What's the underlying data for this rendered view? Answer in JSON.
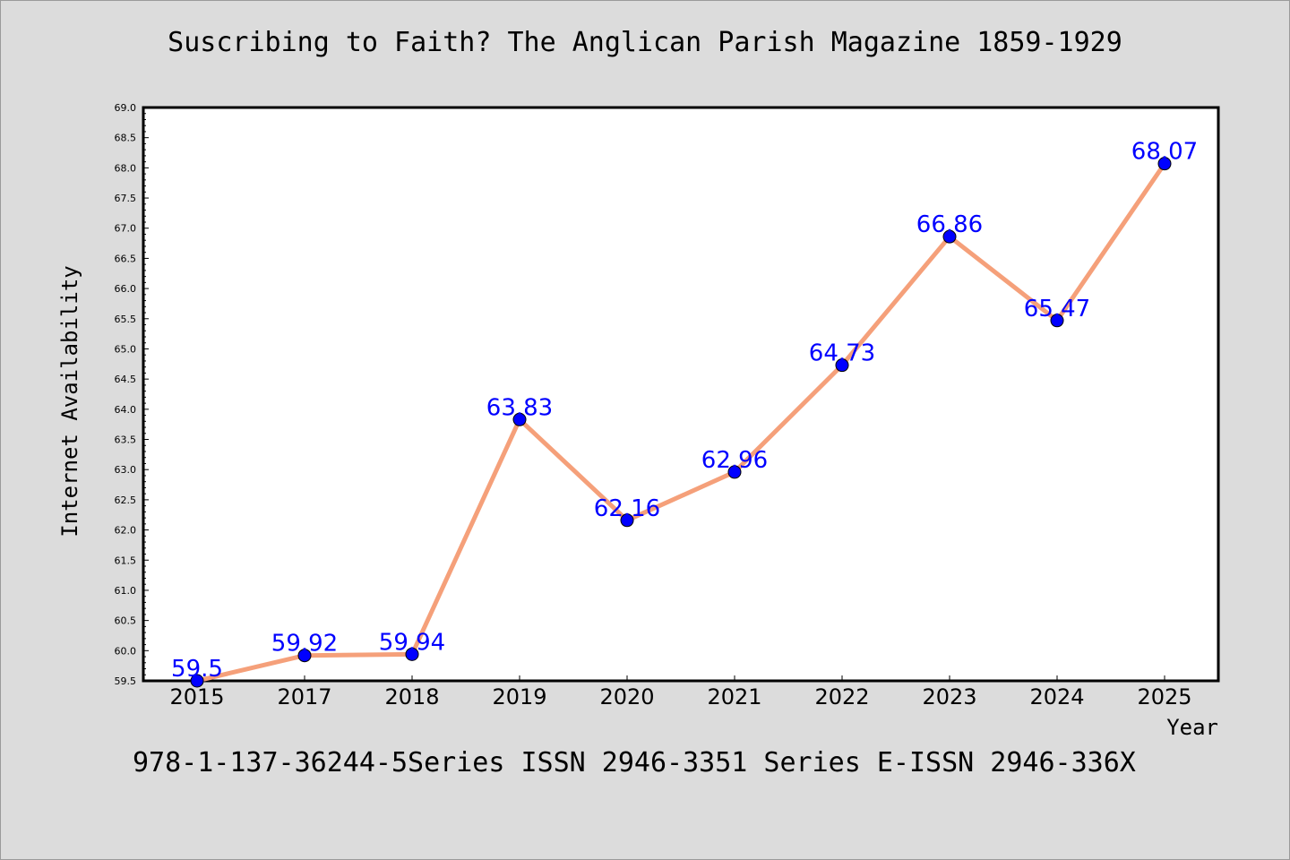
{
  "title": "Suscribing to Faith? The Anglican Parish Magazine 1859-1929",
  "footer": "978-1-137-36244-5Series ISSN 2946-3351 Series E-ISSN 2946-336X",
  "chart_data": {
    "type": "line",
    "title": "Suscribing to Faith? The Anglican Parish Magazine 1859-1929",
    "xlabel": "Year",
    "ylabel": "Internet Availability",
    "categories": [
      "2015",
      "2017",
      "2018",
      "2019",
      "2020",
      "2021",
      "2022",
      "2023",
      "2024",
      "2025"
    ],
    "series": [
      {
        "values": [
          59.5,
          59.92,
          59.94,
          63.83,
          62.16,
          62.96,
          64.73,
          66.86,
          65.47,
          68.07
        ],
        "line_color": "#f5a07a",
        "marker_color": "#0000ff"
      }
    ],
    "data_labels": [
      "59.5",
      "59.92",
      "59.94",
      "63.83",
      "62.16",
      "62.96",
      "64.73",
      "66.86",
      "65.47",
      "68.07"
    ],
    "yticks": [
      "59.5",
      "60.0",
      "60.5",
      "61.0",
      "61.5",
      "62.0",
      "62.5",
      "63.0",
      "63.5",
      "64.0",
      "64.5",
      "65.0",
      "65.5",
      "66.0",
      "66.5",
      "67.0",
      "67.5",
      "68.0",
      "68.5",
      "69.0"
    ],
    "ylim": [
      59.5,
      69.0
    ],
    "grid": false,
    "legend": "none",
    "label_color": "#0000ff"
  }
}
